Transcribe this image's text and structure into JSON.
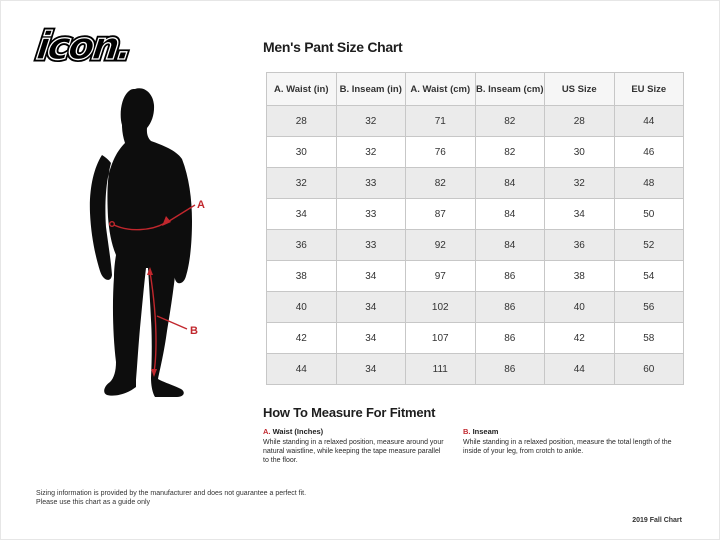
{
  "logo": {
    "text": "icon."
  },
  "chart": {
    "title": "Men's Pant Size Chart",
    "columns": [
      "A. Waist (in)",
      "B. Inseam (in)",
      "A. Waist (cm)",
      "B. Inseam (cm)",
      "US Size",
      "EU Size"
    ],
    "rows": [
      [
        "28",
        "32",
        "71",
        "82",
        "28",
        "44"
      ],
      [
        "30",
        "32",
        "76",
        "82",
        "30",
        "46"
      ],
      [
        "32",
        "33",
        "82",
        "84",
        "32",
        "48"
      ],
      [
        "34",
        "33",
        "87",
        "84",
        "34",
        "50"
      ],
      [
        "36",
        "33",
        "92",
        "84",
        "36",
        "52"
      ],
      [
        "38",
        "34",
        "97",
        "86",
        "38",
        "54"
      ],
      [
        "40",
        "34",
        "102",
        "86",
        "40",
        "56"
      ],
      [
        "42",
        "34",
        "107",
        "86",
        "42",
        "58"
      ],
      [
        "44",
        "34",
        "111",
        "86",
        "44",
        "60"
      ]
    ]
  },
  "figure": {
    "label_a": "A",
    "label_b": "B"
  },
  "how_to": {
    "heading": "How To Measure For Fitment",
    "items": [
      {
        "prefix": "A.",
        "label": "Waist (Inches)",
        "description": "While standing in a relaxed position, measure around your natural waistline, while keeping the tape measure parallel to the floor."
      },
      {
        "prefix": "B.",
        "label": "Inseam",
        "description": "While standing in a relaxed position, measure the total length of the inside of your leg, from crotch to ankle."
      }
    ]
  },
  "footnote": {
    "line1": "Sizing information is provided by the manufacturer and does not guarantee a perfect fit.",
    "line2": "Please use this chart as a guide only"
  },
  "edition": "2019 Fall Chart",
  "colors": {
    "accent_red": "#c1272d",
    "silhouette": "#0d0d0d"
  }
}
